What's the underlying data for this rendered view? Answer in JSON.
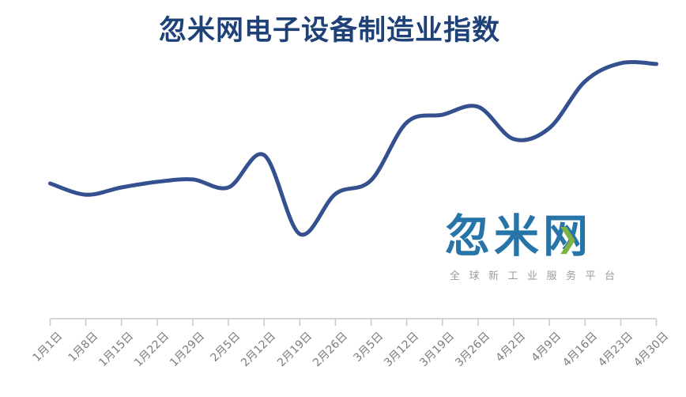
{
  "title": "忽米网电子设备制造业指数",
  "colors": {
    "title": "#1e4178",
    "line": "#34508e",
    "axis": "#c8c8c8",
    "tick_label": "#7d7d7d",
    "logo_blue": "#1c6ea4",
    "logo_green": "#7cb342",
    "logo_subtitle": "#9b9b9b"
  },
  "watermark": {
    "logo_text": "忽米网",
    "subtitle": "全球新工业服务平台"
  },
  "chart_data": {
    "type": "line",
    "title": "忽米网电子设备制造业指数",
    "categories": [
      "1月1日",
      "1月8日",
      "1月15日",
      "1月22日",
      "1月29日",
      "2月5日",
      "2月12日",
      "2月19日",
      "2月26日",
      "3月5日",
      "3月12日",
      "3月19日",
      "3月26日",
      "4月2日",
      "4月9日",
      "4月16日",
      "4月23日",
      "4月30日"
    ],
    "series": [
      {
        "name": "电子设备制造业指数",
        "values": [
          50.6,
          46.4,
          49.1,
          51.2,
          52.1,
          49.1,
          61.2,
          31.7,
          46.7,
          51.8,
          73.4,
          76.3,
          79.3,
          67.2,
          71.3,
          88.8,
          95.6,
          95.3
        ]
      }
    ],
    "xlabel": "",
    "ylabel": "",
    "ylim": [
      0,
      100
    ],
    "y_axis_visible": false,
    "y_values_estimated": true,
    "grid": false,
    "legend": "none",
    "smooth": true,
    "x_tick_rotation": -45
  }
}
